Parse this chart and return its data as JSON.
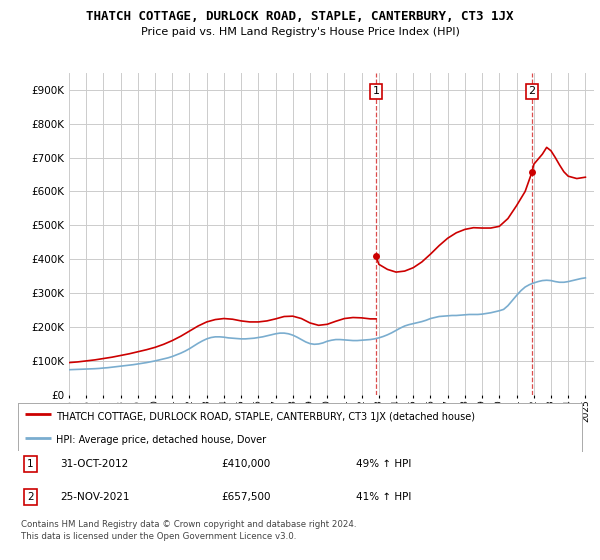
{
  "title": "THATCH COTTAGE, DURLOCK ROAD, STAPLE, CANTERBURY, CT3 1JX",
  "subtitle": "Price paid vs. HM Land Registry's House Price Index (HPI)",
  "legend_line1": "THATCH COTTAGE, DURLOCK ROAD, STAPLE, CANTERBURY, CT3 1JX (detached house)",
  "legend_line2": "HPI: Average price, detached house, Dover",
  "transaction1_date": "31-OCT-2012",
  "transaction1_price": "£410,000",
  "transaction1_hpi": "49% ↑ HPI",
  "transaction2_date": "25-NOV-2021",
  "transaction2_price": "£657,500",
  "transaction2_hpi": "41% ↑ HPI",
  "footnote1": "Contains HM Land Registry data © Crown copyright and database right 2024.",
  "footnote2": "This data is licensed under the Open Government Licence v3.0.",
  "ylim": [
    0,
    950000
  ],
  "yticks": [
    0,
    100000,
    200000,
    300000,
    400000,
    500000,
    600000,
    700000,
    800000,
    900000
  ],
  "property_color": "#cc0000",
  "hpi_color": "#7aadcf",
  "vline_color": "#cc0000",
  "background_color": "#ffffff",
  "grid_color": "#cccccc",
  "transaction1_year": 2012.83,
  "transaction2_year": 2021.9,
  "transaction1_value": 410000,
  "transaction2_value": 657500,
  "hpi_data": [
    [
      1995.0,
      74000
    ],
    [
      1995.25,
      74500
    ],
    [
      1995.5,
      75000
    ],
    [
      1995.75,
      75500
    ],
    [
      1996.0,
      76000
    ],
    [
      1996.25,
      76500
    ],
    [
      1996.5,
      77000
    ],
    [
      1996.75,
      77800
    ],
    [
      1997.0,
      79000
    ],
    [
      1997.25,
      80000
    ],
    [
      1997.5,
      81500
    ],
    [
      1997.75,
      83000
    ],
    [
      1998.0,
      84500
    ],
    [
      1998.25,
      86000
    ],
    [
      1998.5,
      87500
    ],
    [
      1998.75,
      89000
    ],
    [
      1999.0,
      91000
    ],
    [
      1999.25,
      93000
    ],
    [
      1999.5,
      95000
    ],
    [
      1999.75,
      97500
    ],
    [
      2000.0,
      100000
    ],
    [
      2000.25,
      103000
    ],
    [
      2000.5,
      106000
    ],
    [
      2000.75,
      109000
    ],
    [
      2001.0,
      113000
    ],
    [
      2001.25,
      118000
    ],
    [
      2001.5,
      123000
    ],
    [
      2001.75,
      129000
    ],
    [
      2002.0,
      136000
    ],
    [
      2002.25,
      144000
    ],
    [
      2002.5,
      152000
    ],
    [
      2002.75,
      159000
    ],
    [
      2003.0,
      165000
    ],
    [
      2003.25,
      169000
    ],
    [
      2003.5,
      171000
    ],
    [
      2003.75,
      171000
    ],
    [
      2004.0,
      170000
    ],
    [
      2004.25,
      168000
    ],
    [
      2004.5,
      167000
    ],
    [
      2004.75,
      166000
    ],
    [
      2005.0,
      165000
    ],
    [
      2005.25,
      165000
    ],
    [
      2005.5,
      166000
    ],
    [
      2005.75,
      167000
    ],
    [
      2006.0,
      169000
    ],
    [
      2006.25,
      171000
    ],
    [
      2006.5,
      174000
    ],
    [
      2006.75,
      177000
    ],
    [
      2007.0,
      180000
    ],
    [
      2007.25,
      182000
    ],
    [
      2007.5,
      182000
    ],
    [
      2007.75,
      180000
    ],
    [
      2008.0,
      176000
    ],
    [
      2008.25,
      170000
    ],
    [
      2008.5,
      163000
    ],
    [
      2008.75,
      156000
    ],
    [
      2009.0,
      151000
    ],
    [
      2009.25,
      149000
    ],
    [
      2009.5,
      150000
    ],
    [
      2009.75,
      153000
    ],
    [
      2010.0,
      158000
    ],
    [
      2010.25,
      161000
    ],
    [
      2010.5,
      163000
    ],
    [
      2010.75,
      163000
    ],
    [
      2011.0,
      162000
    ],
    [
      2011.25,
      161000
    ],
    [
      2011.5,
      160000
    ],
    [
      2011.75,
      160000
    ],
    [
      2012.0,
      161000
    ],
    [
      2012.25,
      162000
    ],
    [
      2012.5,
      163000
    ],
    [
      2012.75,
      165000
    ],
    [
      2013.0,
      168000
    ],
    [
      2013.25,
      172000
    ],
    [
      2013.5,
      177000
    ],
    [
      2013.75,
      183000
    ],
    [
      2014.0,
      190000
    ],
    [
      2014.25,
      197000
    ],
    [
      2014.5,
      203000
    ],
    [
      2014.75,
      207000
    ],
    [
      2015.0,
      210000
    ],
    [
      2015.25,
      213000
    ],
    [
      2015.5,
      216000
    ],
    [
      2015.75,
      220000
    ],
    [
      2016.0,
      225000
    ],
    [
      2016.25,
      228000
    ],
    [
      2016.5,
      231000
    ],
    [
      2016.75,
      232000
    ],
    [
      2017.0,
      233000
    ],
    [
      2017.25,
      234000
    ],
    [
      2017.5,
      234000
    ],
    [
      2017.75,
      235000
    ],
    [
      2018.0,
      236000
    ],
    [
      2018.25,
      237000
    ],
    [
      2018.5,
      237000
    ],
    [
      2018.75,
      237000
    ],
    [
      2019.0,
      238000
    ],
    [
      2019.25,
      240000
    ],
    [
      2019.5,
      242000
    ],
    [
      2019.75,
      245000
    ],
    [
      2020.0,
      248000
    ],
    [
      2020.25,
      252000
    ],
    [
      2020.5,
      263000
    ],
    [
      2020.75,
      278000
    ],
    [
      2021.0,
      293000
    ],
    [
      2021.25,
      307000
    ],
    [
      2021.5,
      318000
    ],
    [
      2021.75,
      325000
    ],
    [
      2022.0,
      330000
    ],
    [
      2022.25,
      334000
    ],
    [
      2022.5,
      337000
    ],
    [
      2022.75,
      338000
    ],
    [
      2023.0,
      337000
    ],
    [
      2023.25,
      334000
    ],
    [
      2023.5,
      332000
    ],
    [
      2023.75,
      332000
    ],
    [
      2024.0,
      334000
    ],
    [
      2024.25,
      337000
    ],
    [
      2024.5,
      340000
    ],
    [
      2024.75,
      343000
    ],
    [
      2025.0,
      345000
    ]
  ],
  "property_data_before_t1": [
    [
      1995.0,
      95000
    ],
    [
      1995.5,
      97000
    ],
    [
      1996.0,
      100000
    ],
    [
      1996.5,
      103000
    ],
    [
      1997.0,
      107000
    ],
    [
      1997.5,
      111000
    ],
    [
      1998.0,
      116000
    ],
    [
      1998.5,
      121000
    ],
    [
      1999.0,
      127000
    ],
    [
      1999.5,
      133000
    ],
    [
      2000.0,
      140000
    ],
    [
      2000.5,
      149000
    ],
    [
      2001.0,
      160000
    ],
    [
      2001.5,
      173000
    ],
    [
      2002.0,
      188000
    ],
    [
      2002.5,
      203000
    ],
    [
      2003.0,
      215000
    ],
    [
      2003.5,
      222000
    ],
    [
      2004.0,
      225000
    ],
    [
      2004.5,
      223000
    ],
    [
      2005.0,
      218000
    ],
    [
      2005.5,
      215000
    ],
    [
      2006.0,
      215000
    ],
    [
      2006.5,
      218000
    ],
    [
      2007.0,
      224000
    ],
    [
      2007.5,
      231000
    ],
    [
      2008.0,
      232000
    ],
    [
      2008.5,
      225000
    ],
    [
      2009.0,
      212000
    ],
    [
      2009.5,
      205000
    ],
    [
      2010.0,
      208000
    ],
    [
      2010.5,
      217000
    ],
    [
      2011.0,
      225000
    ],
    [
      2011.5,
      228000
    ],
    [
      2012.0,
      227000
    ],
    [
      2012.5,
      224000
    ],
    [
      2012.83,
      224000
    ]
  ],
  "property_data_after_t1": [
    [
      2012.83,
      410000
    ],
    [
      2013.0,
      385000
    ],
    [
      2013.5,
      370000
    ],
    [
      2014.0,
      362000
    ],
    [
      2014.5,
      365000
    ],
    [
      2015.0,
      375000
    ],
    [
      2015.5,
      392000
    ],
    [
      2016.0,
      415000
    ],
    [
      2016.5,
      440000
    ],
    [
      2017.0,
      462000
    ],
    [
      2017.5,
      478000
    ],
    [
      2018.0,
      488000
    ],
    [
      2018.5,
      493000
    ],
    [
      2019.0,
      492000
    ],
    [
      2019.5,
      492000
    ],
    [
      2020.0,
      497000
    ],
    [
      2020.5,
      520000
    ],
    [
      2021.0,
      558000
    ],
    [
      2021.5,
      600000
    ],
    [
      2021.9,
      657500
    ],
    [
      2022.0,
      680000
    ],
    [
      2022.5,
      710000
    ],
    [
      2022.75,
      730000
    ],
    [
      2023.0,
      720000
    ],
    [
      2023.25,
      700000
    ],
    [
      2023.5,
      678000
    ],
    [
      2023.75,
      658000
    ],
    [
      2024.0,
      645000
    ],
    [
      2024.5,
      638000
    ],
    [
      2025.0,
      642000
    ]
  ]
}
